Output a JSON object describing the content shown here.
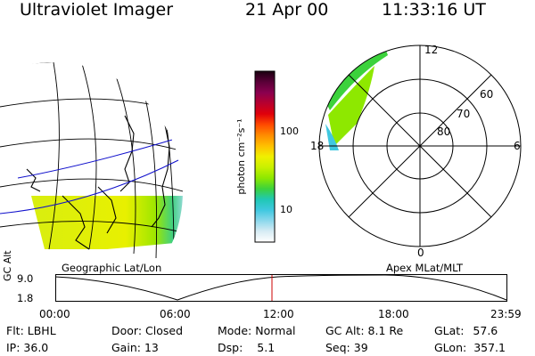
{
  "header": {
    "title": "Ultraviolet Imager",
    "date": "21 Apr 00",
    "time": "11:33:16 UT"
  },
  "colorbar": {
    "label": "photon cm⁻²s⁻¹",
    "ticks": [
      "100",
      "10"
    ],
    "colors": [
      "#1a0010",
      "#5a0038",
      "#8a004f",
      "#b8002e",
      "#e0000a",
      "#ff4a00",
      "#ff8c00",
      "#ffc000",
      "#f0f000",
      "#c8f000",
      "#8ee800",
      "#3cd23c",
      "#20c8b4",
      "#40c8e0",
      "#8cd8ec",
      "#d8ecf4",
      "#ffffff"
    ]
  },
  "left_map": {
    "caption": "Geographic Lat/Lon",
    "aurora_color": "#e8f000"
  },
  "polar_plot": {
    "caption": "Apex MLat/MLT",
    "mlt_labels": {
      "top": "12",
      "left": "18",
      "right": "6",
      "bottom": "0"
    },
    "lat_labels": [
      "60",
      "70",
      "80"
    ]
  },
  "altitude_panel": {
    "axis_label": "GC Alt",
    "y_ticks": [
      "9.0",
      "1.8"
    ],
    "x_ticks": [
      "00:00",
      "06:00",
      "12:00",
      "18:00",
      "23:59"
    ],
    "marker_color": "#cc0000"
  },
  "status": [
    [
      {
        "label": "Flt:",
        "value": "LBHL"
      },
      {
        "label": "Door:",
        "value": "Closed"
      },
      {
        "label": "Mode:",
        "value": "Normal"
      },
      {
        "label": "GC Alt:",
        "value": "8.1 Re"
      },
      {
        "label": "GLat:",
        "value": "57.6"
      }
    ],
    [
      {
        "label": "IP:",
        "value": "36.0"
      },
      {
        "label": "Gain:",
        "value": "13"
      },
      {
        "label": "Dsp:",
        "value": "5.1"
      },
      {
        "label": "Seq:",
        "value": "39"
      },
      {
        "label": "GLon:",
        "value": "357.1"
      }
    ]
  ]
}
